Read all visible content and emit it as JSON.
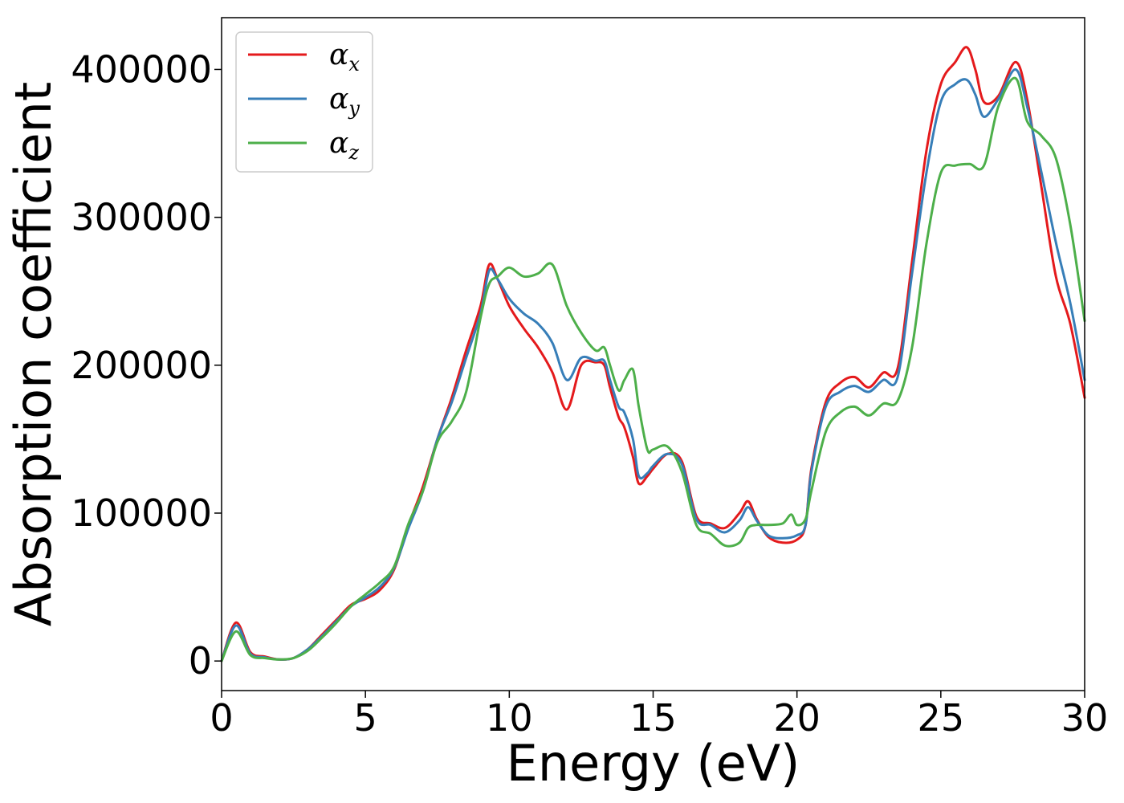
{
  "chart_data": {
    "type": "line",
    "title": "",
    "xlabel": "Energy (eV)",
    "ylabel": "Absorption coefficient",
    "xlim": [
      0,
      30
    ],
    "ylim": [
      -20000,
      435000
    ],
    "xticks": [
      0,
      5,
      10,
      15,
      20,
      25,
      30
    ],
    "yticks": [
      0,
      100000,
      200000,
      300000,
      400000
    ],
    "grid": false,
    "legend_position": "top-left",
    "series": [
      {
        "name": "α",
        "subscript": "x",
        "color": "#e41a1c",
        "x": [
          0,
          0.5,
          1,
          1.5,
          2,
          2.5,
          3,
          3.5,
          4,
          4.5,
          5,
          5.5,
          6,
          6.5,
          7,
          7.5,
          8,
          8.5,
          9,
          9.3,
          9.6,
          10,
          10.5,
          11,
          11.5,
          12,
          12.5,
          13,
          13.3,
          13.5,
          13.8,
          14,
          14.3,
          14.5,
          14.8,
          15,
          15.5,
          16,
          16.5,
          17,
          17.5,
          18,
          18.3,
          18.6,
          19,
          19.5,
          20,
          20.3,
          20.5,
          21,
          21.5,
          22,
          22.5,
          23,
          23.5,
          24,
          24.5,
          25,
          25.5,
          25.9,
          26.2,
          26.5,
          27,
          27.6,
          28,
          28.5,
          29,
          29.5,
          30
        ],
        "y": [
          0,
          26000,
          6000,
          3000,
          1000,
          2000,
          8000,
          18000,
          28000,
          38000,
          42000,
          48000,
          62000,
          92000,
          118000,
          150000,
          178000,
          210000,
          240000,
          268000,
          258000,
          240000,
          225000,
          212000,
          195000,
          170000,
          200000,
          202000,
          200000,
          185000,
          165000,
          158000,
          138000,
          120000,
          125000,
          130000,
          140000,
          135000,
          98000,
          93000,
          90000,
          100000,
          108000,
          96000,
          84000,
          80000,
          82000,
          92000,
          130000,
          175000,
          188000,
          192000,
          185000,
          195000,
          198000,
          270000,
          345000,
          390000,
          405000,
          415000,
          400000,
          378000,
          382000,
          405000,
          380000,
          320000,
          260000,
          228000,
          178000
        ]
      },
      {
        "name": "α",
        "subscript": "y",
        "color": "#377eb8",
        "x": [
          0,
          0.5,
          1,
          1.5,
          2,
          2.5,
          3,
          3.5,
          4,
          4.5,
          5,
          5.5,
          6,
          6.5,
          7,
          7.5,
          8,
          8.5,
          9,
          9.3,
          9.6,
          10,
          10.5,
          11,
          11.5,
          12,
          12.5,
          13,
          13.3,
          13.5,
          13.8,
          14,
          14.3,
          14.5,
          14.8,
          15,
          15.5,
          16,
          16.5,
          17,
          17.5,
          18,
          18.3,
          18.6,
          19,
          19.5,
          20,
          20.3,
          20.5,
          21,
          21.5,
          22,
          22.5,
          23,
          23.5,
          24,
          24.5,
          25,
          25.5,
          25.9,
          26.2,
          26.5,
          27,
          27.6,
          28,
          28.5,
          29,
          29.5,
          30
        ],
        "y": [
          0,
          24000,
          5000,
          2500,
          1000,
          2000,
          8000,
          17000,
          27000,
          37000,
          43000,
          50000,
          63000,
          90000,
          115000,
          150000,
          175000,
          205000,
          235000,
          264000,
          258000,
          245000,
          235000,
          228000,
          215000,
          190000,
          205000,
          203000,
          203000,
          190000,
          172000,
          168000,
          150000,
          125000,
          127000,
          132000,
          140000,
          133000,
          96000,
          92000,
          87000,
          95000,
          104000,
          95000,
          85000,
          83000,
          85000,
          92000,
          128000,
          172000,
          182000,
          186000,
          182000,
          190000,
          192000,
          262000,
          330000,
          378000,
          390000,
          393000,
          383000,
          368000,
          380000,
          400000,
          375000,
          330000,
          283000,
          242000,
          190000
        ]
      },
      {
        "name": "α",
        "subscript": "z",
        "color": "#4daf4a",
        "x": [
          0,
          0.5,
          1,
          1.5,
          2,
          2.5,
          3,
          3.5,
          4,
          4.5,
          5,
          5.5,
          6,
          6.5,
          7,
          7.5,
          8,
          8.5,
          9,
          9.3,
          9.6,
          10,
          10.5,
          11,
          11.5,
          12,
          12.5,
          13,
          13.3,
          13.5,
          13.8,
          14,
          14.3,
          14.5,
          14.8,
          15,
          15.5,
          16,
          16.5,
          17,
          17.5,
          18,
          18.3,
          18.6,
          19,
          19.5,
          19.8,
          20,
          20.3,
          20.5,
          21,
          21.5,
          22,
          22.5,
          23,
          23.5,
          24,
          24.5,
          25,
          25.5,
          26,
          26.5,
          27,
          27.6,
          28,
          28.5,
          29,
          29.5,
          30
        ],
        "y": [
          0,
          20000,
          4000,
          2000,
          1000,
          2000,
          7000,
          16000,
          26000,
          37000,
          45000,
          53000,
          64000,
          93000,
          115000,
          148000,
          162000,
          182000,
          232000,
          255000,
          260000,
          266000,
          260000,
          262000,
          268000,
          240000,
          222000,
          210000,
          212000,
          200000,
          183000,
          190000,
          197000,
          172000,
          143000,
          143000,
          145000,
          128000,
          92000,
          86000,
          78000,
          80000,
          90000,
          92000,
          92000,
          93000,
          99000,
          92000,
          96000,
          115000,
          155000,
          168000,
          172000,
          166000,
          174000,
          176000,
          212000,
          282000,
          330000,
          335000,
          336000,
          335000,
          375000,
          394000,
          365000,
          355000,
          340000,
          295000,
          230000
        ]
      }
    ]
  }
}
